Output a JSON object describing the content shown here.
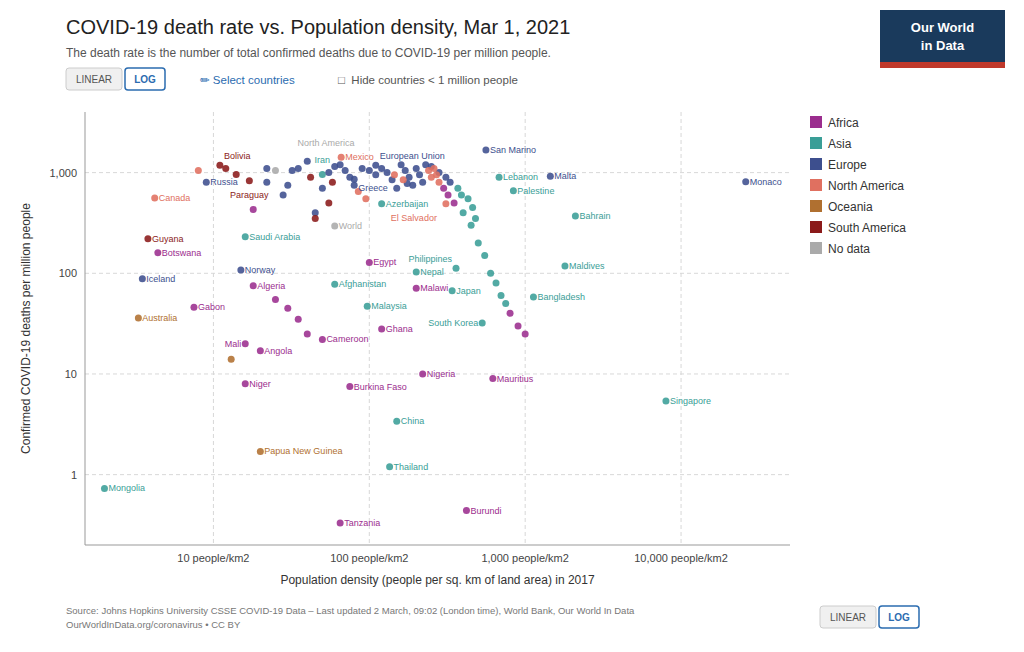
{
  "chart_data": {
    "type": "scatter",
    "title": "COVID-19 death rate vs. Population density, Mar 1, 2021",
    "subtitle": "The death rate is the number of total confirmed deaths due to COVID-19 per million people.",
    "x_label": "Population density (people per sq. km of land area) in 2017",
    "y_label": "Confirmed COVID-19 deaths per million people",
    "source": [
      "Source: Johns Hopkins University CSSE COVID-19 Data – Last updated 2 March, 09:02 (London time), World Bank, Our World In Data",
      "OurWorldInData.org/coronavirus • CC BY"
    ],
    "annotations": [
      "LINEAR",
      "LOG",
      "✏ Select countries",
      "□  Hide countries < 1 million people",
      "LINEAR",
      "LOG",
      "Our World",
      "in Data"
    ],
    "log": true,
    "grid": true,
    "legend": "right",
    "xlim": [
      1.5,
      50000
    ],
    "ylim": [
      0.2,
      4000
    ],
    "xticks": [
      {
        "value": 10,
        "label": "10 people/km2"
      },
      {
        "value": 100,
        "label": "100 people/km2"
      },
      {
        "value": 1000,
        "label": "1,000 people/km2"
      },
      {
        "value": 10000,
        "label": "10,000 people/km2"
      }
    ],
    "yticks": [
      1,
      10,
      100,
      {
        "value": 1000,
        "label": "1,000"
      }
    ],
    "series": [
      {
        "name": "Africa",
        "color": "#9B2D8E",
        "x": [
          4.4,
          7.5,
          16,
          16,
          20,
          18,
          100,
          200,
          50,
          120,
          75,
          220,
          65,
          420,
          620,
          18,
          300,
          320,
          350,
          800,
          900,
          1000,
          25,
          30,
          35,
          40
        ],
        "values": [
          160,
          46,
          8,
          20,
          17,
          75,
          128,
          71,
          22,
          28,
          7.5,
          10,
          0.33,
          0.44,
          9,
          430,
          700,
          600,
          500,
          40,
          30,
          25,
          55,
          45,
          35,
          25
        ],
        "labels": [
          "Botswana",
          "Gabon",
          "Niger",
          "Mali",
          "Angola",
          "Algeria",
          "Egypt",
          "Malawi",
          "Cameroon",
          "Ghana",
          "Burkina Faso",
          "Nigeria",
          "Tanzania",
          "Burundi",
          "Mauritius",
          null,
          null,
          null,
          null,
          null,
          null,
          null,
          null,
          null,
          null,
          null
        ]
      },
      {
        "name": "Asia",
        "color": "#3A9E97",
        "x": [
          2.0,
          16,
          50,
          60,
          97,
          120,
          200,
          340,
          150,
          135,
          360,
          530,
          1130,
          1800,
          2100,
          840,
          680,
          8000,
          400,
          450,
          500,
          550,
          600,
          650,
          700,
          750,
          370,
          390,
          430,
          460,
          480
        ],
        "values": [
          0.73,
          230,
          960,
          78,
          47,
          490,
          103,
          67,
          3.4,
          1.2,
          112,
          32,
          58,
          118,
          370,
          660,
          900,
          5.4,
          400,
          300,
          200,
          150,
          100,
          80,
          60,
          50,
          700,
          600,
          550,
          450,
          350
        ],
        "labels": [
          "Mongolia",
          "Saudi Arabia",
          "Iran",
          "Afghanistan",
          "Malaysia",
          "Azerbaijan",
          "Nepal",
          "Japan",
          "China",
          "Thailand",
          "Philippines",
          "South Korea",
          "Bangladesh",
          "Maldives",
          "Bahrain",
          "Palestine",
          "Lebanon",
          "Singapore",
          null,
          null,
          null,
          null,
          null,
          null,
          null,
          null,
          null,
          null,
          null,
          null,
          null
        ]
      },
      {
        "name": "Europe",
        "color": "#3D4F8E",
        "x": [
          3.5,
          9,
          15,
          80,
          110,
          1450,
          560,
          26000,
          22,
          28,
          35,
          40,
          45,
          50,
          55,
          60,
          65,
          70,
          75,
          80,
          90,
          100,
          110,
          120,
          130,
          140,
          150,
          160,
          170,
          180,
          190,
          200,
          210,
          220,
          230,
          30,
          22,
          32,
          175,
          250,
          280,
          310,
          330
        ],
        "values": [
          88,
          800,
          108,
          860,
          1180,
          920,
          1680,
          810,
          800,
          600,
          1100,
          1300,
          400,
          700,
          1000,
          1150,
          1200,
          1050,
          900,
          750,
          1100,
          1050,
          950,
          1100,
          1000,
          850,
          700,
          1200,
          1050,
          900,
          750,
          1100,
          950,
          800,
          1200,
          750,
          1100,
          1050,
          780,
          1150,
          1000,
          900,
          800
        ],
        "labels": [
          "Iceland",
          "Russia",
          "Norway",
          "Greece",
          "European Union",
          "Malta",
          "San Marino",
          "Monaco",
          null,
          null,
          null,
          null,
          null,
          null,
          null,
          null,
          null,
          null,
          null,
          null,
          null,
          null,
          null,
          null,
          null,
          null,
          null,
          null,
          null,
          null,
          null,
          null,
          null,
          null,
          null,
          null,
          null,
          null,
          null,
          null,
          null,
          null,
          null
        ]
      },
      {
        "name": "North America",
        "color": "#E07060",
        "x": [
          4.2,
          66,
          310,
          8,
          240,
          250,
          260,
          270,
          280,
          85,
          95,
          145,
          165
        ],
        "values": [
          560,
          1420,
          490,
          1050,
          1050,
          900,
          1100,
          950,
          800,
          650,
          550,
          950,
          850
        ],
        "labels": [
          "Canada",
          "Mexico",
          "El Salvador",
          null,
          null,
          null,
          null,
          null,
          null,
          null,
          null,
          null,
          null
        ]
      },
      {
        "name": "Oceania",
        "color": "#B07030",
        "x": [
          3.3,
          20,
          13
        ],
        "values": [
          36,
          1.7,
          14
        ],
        "labels": [
          "Australia",
          "Papua New Guinea",
          null
        ]
      },
      {
        "name": "South America",
        "color": "#8B1A1A",
        "x": [
          3.8,
          11,
          17,
          12,
          14,
          55,
          45,
          42,
          58
        ],
        "values": [
          220,
          1180,
          830,
          1100,
          960,
          500,
          350,
          900,
          800
        ],
        "labels": [
          "Guyana",
          "Bolivia",
          "Paraguay",
          null,
          null,
          null,
          null,
          null,
          null
        ]
      },
      {
        "name": "No data",
        "color": "#AAAAAA",
        "x": [
          25,
          60
        ],
        "values": [
          1050,
          295
        ],
        "labels": [
          "North America",
          "World"
        ]
      }
    ]
  }
}
